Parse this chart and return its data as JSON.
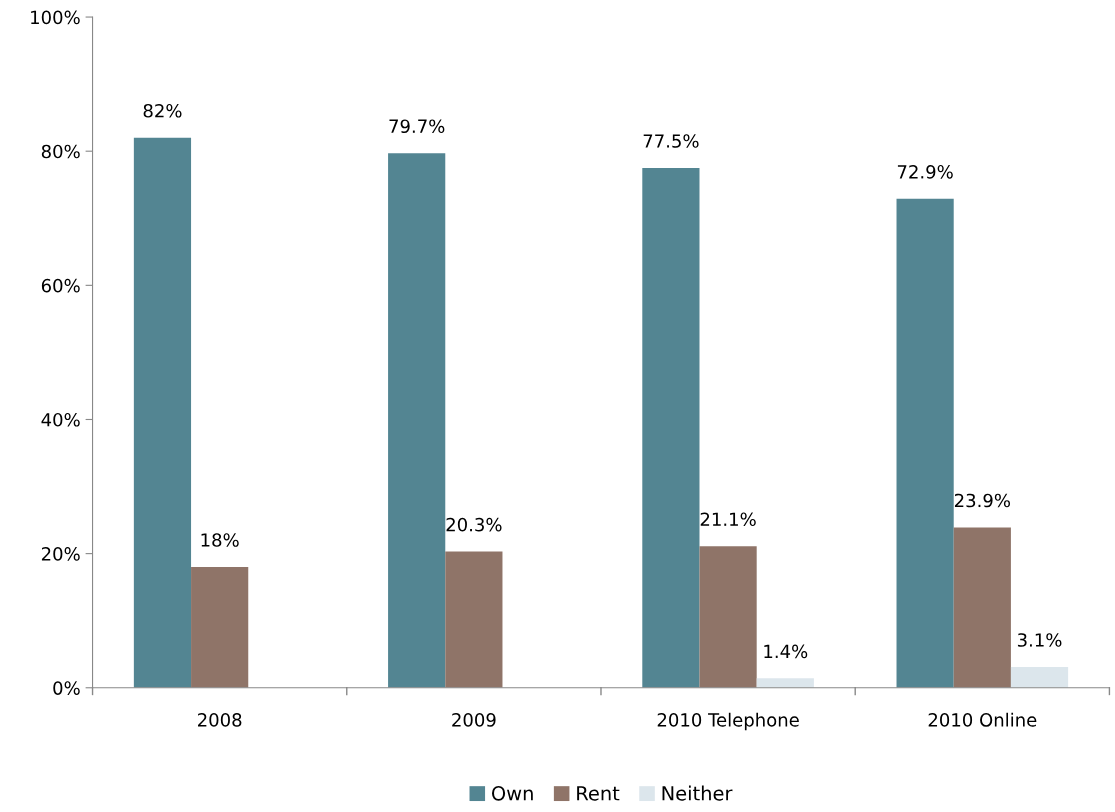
{
  "chart_data": {
    "type": "bar",
    "categories": [
      "2008",
      "2009",
      "2010 Telephone",
      "2010 Online"
    ],
    "series": [
      {
        "name": "Own",
        "color": "#538592",
        "values": [
          82,
          79.7,
          77.5,
          72.9
        ],
        "value_labels": [
          "82%",
          "79.7%",
          "77.5%",
          "72.9%"
        ]
      },
      {
        "name": "Rent",
        "color": "#8f7468",
        "values": [
          18,
          20.3,
          21.1,
          23.9
        ],
        "value_labels": [
          "18%",
          "20.3%",
          "21.1%",
          "23.9%"
        ]
      },
      {
        "name": "Neither",
        "color": "#dce6ec",
        "values": [
          null,
          null,
          1.4,
          3.1
        ],
        "value_labels": [
          null,
          null,
          "1.4%",
          "3.1%"
        ]
      }
    ],
    "ylim": [
      0,
      100
    ],
    "yticks": [
      {
        "value": 0,
        "label": "0%"
      },
      {
        "value": 20,
        "label": "20%"
      },
      {
        "value": 40,
        "label": "40%"
      },
      {
        "value": 60,
        "label": "60%"
      },
      {
        "value": 80,
        "label": "80%"
      },
      {
        "value": 100,
        "label": "100%"
      }
    ],
    "grid": false,
    "legend": "bottom"
  }
}
